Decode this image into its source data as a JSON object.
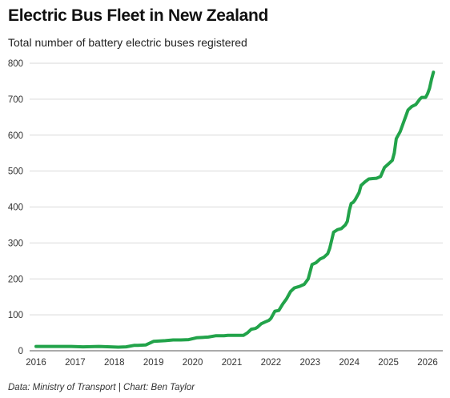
{
  "title": "Electric Bus Fleet in New Zealand",
  "subtitle": "Total number of battery electric buses registered",
  "source": "Data: Ministry of Transport | Chart: Ben Taylor",
  "chart_data": {
    "type": "line",
    "title": "Electric Bus Fleet in New Zealand",
    "subtitle": "Total number of battery electric buses registered",
    "xlabel": "",
    "ylabel": "",
    "xlim": [
      2016,
      2026.2
    ],
    "ylim": [
      0,
      800
    ],
    "grid": true,
    "legend": "none",
    "color": "#22a34a",
    "y_ticks": [
      0,
      100,
      200,
      300,
      400,
      500,
      600,
      700,
      800
    ],
    "x_ticks": [
      2016,
      2017,
      2018,
      2019,
      2020,
      2021,
      2022,
      2023,
      2024,
      2025,
      2026
    ],
    "series": [
      {
        "x": [
          2016.0,
          2016.5,
          2016.9,
          2017.2,
          2017.6,
          2017.9,
          2018.1,
          2018.3,
          2018.5,
          2018.6,
          2018.8,
          2019.0,
          2019.3,
          2019.5,
          2019.7,
          2019.9,
          2020.1,
          2020.4,
          2020.6,
          2020.8,
          2020.9,
          2021.0,
          2021.1,
          2021.2,
          2021.3,
          2021.4,
          2021.5,
          2021.6,
          2021.65,
          2021.75,
          2021.85,
          2021.95,
          2022.0,
          2022.1,
          2022.2,
          2022.3,
          2022.4,
          2022.5,
          2022.6,
          2022.7,
          2022.75,
          2022.85,
          2022.95,
          2023.0,
          2023.05,
          2023.15,
          2023.25,
          2023.35,
          2023.45,
          2023.5,
          2023.6,
          2023.7,
          2023.8,
          2023.9,
          2023.95,
          2024.0,
          2024.05,
          2024.1,
          2024.15,
          2024.25,
          2024.3,
          2024.4,
          2024.5,
          2024.6,
          2024.7,
          2024.8,
          2024.9,
          2025.0,
          2025.1,
          2025.15,
          2025.2,
          2025.25,
          2025.3,
          2025.4,
          2025.5,
          2025.6,
          2025.7,
          2025.8,
          2025.85,
          2025.9,
          2025.95,
          2026.0,
          2026.05,
          2026.1,
          2026.15
        ],
        "y": [
          12,
          12,
          12,
          11,
          12,
          11,
          10,
          11,
          15,
          15,
          16,
          26,
          28,
          30,
          30,
          31,
          36,
          38,
          42,
          42,
          43,
          43,
          43,
          43,
          43,
          50,
          60,
          62,
          65,
          75,
          80,
          85,
          90,
          110,
          112,
          130,
          145,
          165,
          175,
          178,
          180,
          185,
          200,
          220,
          240,
          245,
          255,
          260,
          270,
          285,
          330,
          337,
          340,
          350,
          360,
          390,
          410,
          413,
          420,
          440,
          460,
          470,
          478,
          479,
          480,
          485,
          510,
          520,
          530,
          550,
          590,
          600,
          610,
          640,
          670,
          680,
          685,
          700,
          705,
          705,
          705,
          715,
          730,
          755,
          775
        ]
      }
    ]
  }
}
